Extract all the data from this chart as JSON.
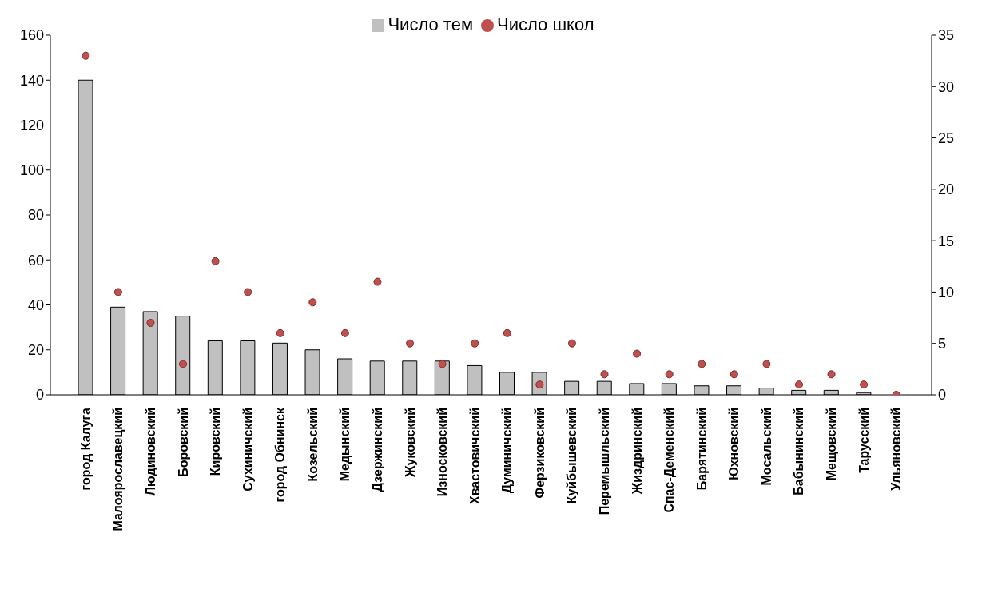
{
  "chart_data": {
    "type": "bar",
    "categories": [
      "город Калуга",
      "Малоярославецкий",
      "Людиновский",
      "Боровский",
      "Кировский",
      "Сухиничский",
      "город Обнинск",
      "Козельский",
      "Медынский",
      "Дзержинский",
      "Жуковский",
      "Износковский",
      "Хвастовичский",
      "Думиничский",
      "Ферзиковский",
      "Куйбышевский",
      "Перемышльский",
      "Жиздринский",
      "Спас-Деменский",
      "Барятинский",
      "Юхновский",
      "Мосальский",
      "Бабынинский",
      "Мещовский",
      "Тарусский",
      "Ульяновский"
    ],
    "series": [
      {
        "name": "Число тем",
        "color": "#c0c0c0",
        "values": [
          140,
          39,
          37,
          35,
          24,
          24,
          23,
          20,
          16,
          15,
          15,
          15,
          13,
          10,
          10,
          6,
          6,
          5,
          5,
          4,
          4,
          3,
          2,
          2,
          1,
          0
        ]
      },
      {
        "name": "Число школ",
        "type": "scatter",
        "axis": "y2",
        "color": "#c0504d",
        "values": [
          33,
          10,
          7,
          3,
          13,
          10,
          6,
          9,
          6,
          11,
          5,
          3,
          5,
          6,
          1,
          5,
          2,
          4,
          2,
          3,
          2,
          3,
          1,
          2,
          1,
          0
        ]
      }
    ],
    "ylim": [
      0,
      160
    ],
    "yticks": [
      0,
      20,
      40,
      60,
      80,
      100,
      120,
      140,
      160
    ],
    "y2lim": [
      0,
      35
    ],
    "y2ticks": [
      0,
      5,
      10,
      15,
      20,
      25,
      30,
      35
    ],
    "grid": false,
    "legend": "top",
    "marker": "circle"
  }
}
